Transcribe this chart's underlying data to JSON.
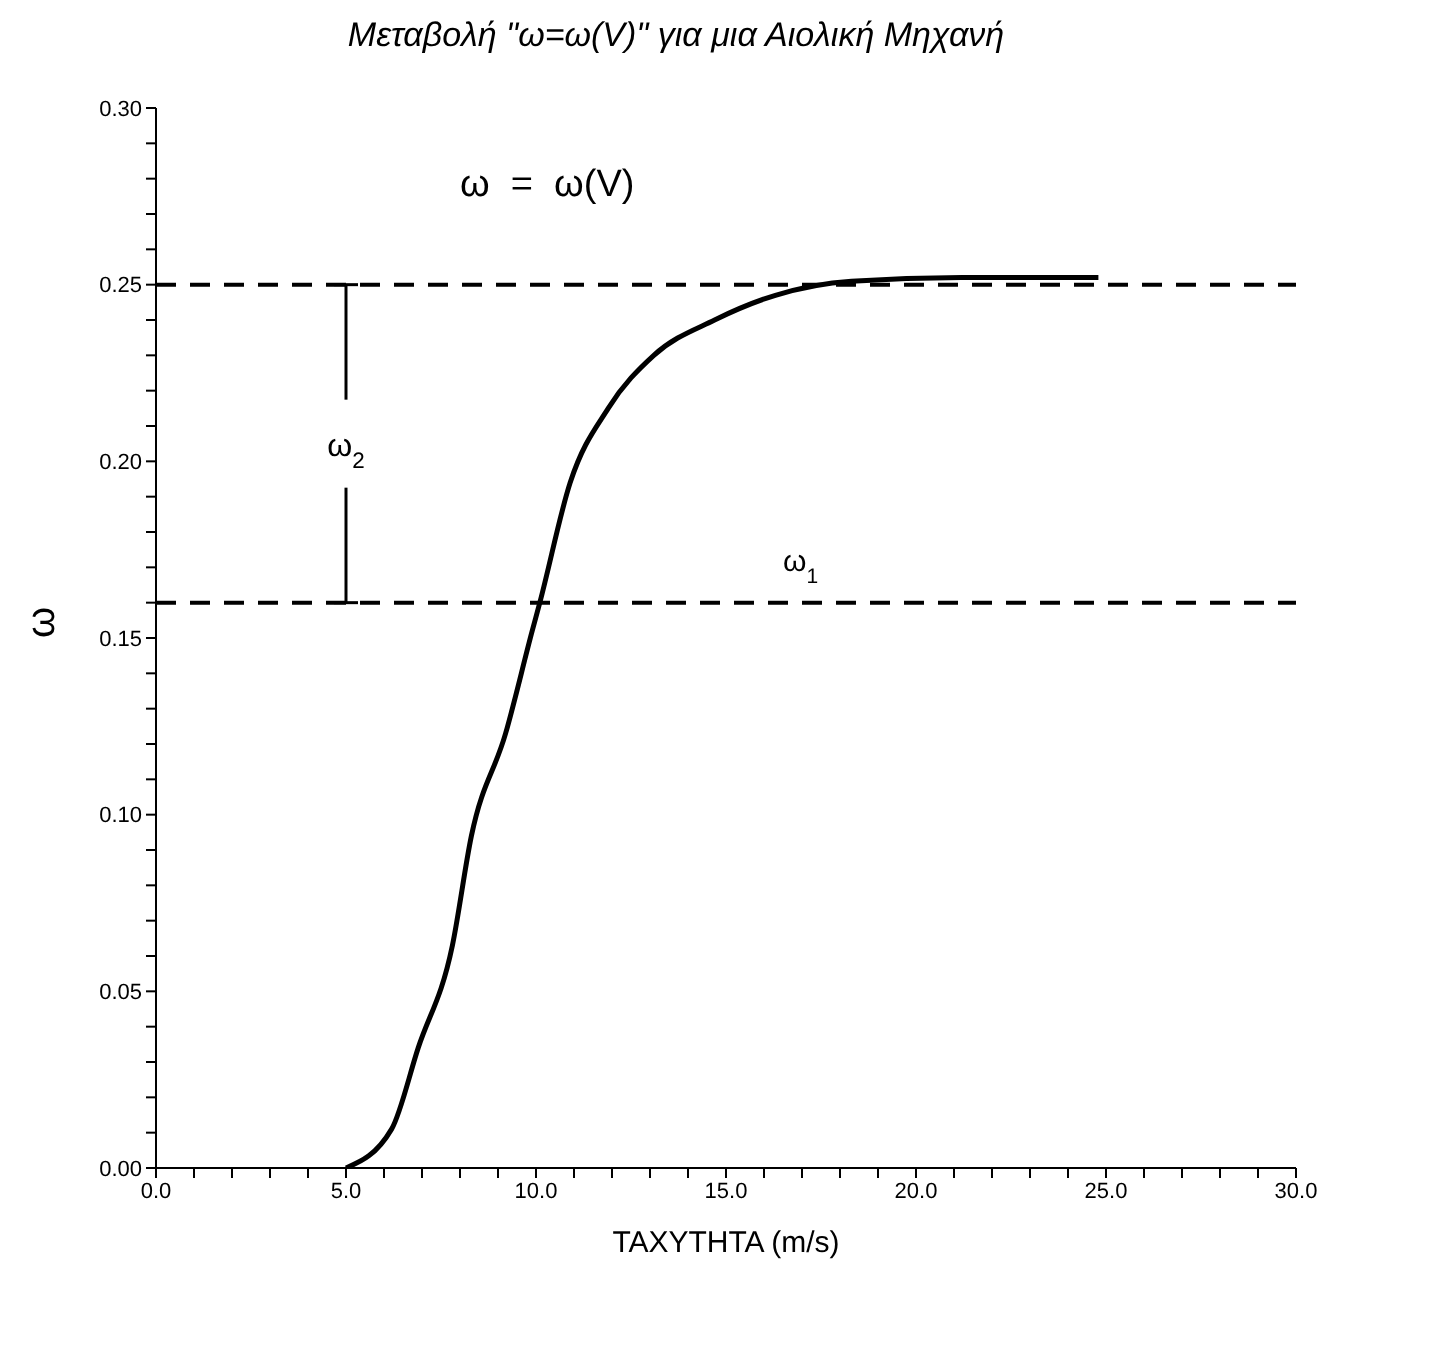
{
  "chart_data": {
    "type": "line",
    "title": "Μεταβολή \"ω=ω(V)\" για μια Αιολική Μηχανή",
    "xlabel": "ΤΑΧΥΤΗΤΑ  (m/s)",
    "ylabel": "ω",
    "x": [
      5.0,
      6.2,
      6.9,
      7.8,
      8.3,
      9.2,
      9.9,
      10.1,
      10.9,
      11.9,
      13.1,
      14.7,
      16.3,
      18.3,
      21.2,
      24.8
    ],
    "series": [
      {
        "color": "#000000",
        "values": [
          0.0,
          0.011,
          0.034,
          0.063,
          0.094,
          0.123,
          0.152,
          0.16,
          0.194,
          0.215,
          0.23,
          0.24,
          0.247,
          0.251,
          0.252,
          0.252
        ]
      }
    ],
    "xlim": [
      0,
      30
    ],
    "ylim": [
      0,
      0.3
    ],
    "xticks": [
      {
        "value": 0,
        "label": "0.0"
      },
      {
        "value": 1,
        "label": null
      },
      {
        "value": 2,
        "label": null
      },
      {
        "value": 3,
        "label": null
      },
      {
        "value": 4,
        "label": null
      },
      {
        "value": 5,
        "label": "5.0"
      },
      {
        "value": 6,
        "label": null
      },
      {
        "value": 7,
        "label": null
      },
      {
        "value": 8,
        "label": null
      },
      {
        "value": 9,
        "label": null
      },
      {
        "value": 10,
        "label": "10.0"
      },
      {
        "value": 11,
        "label": null
      },
      {
        "value": 12,
        "label": null
      },
      {
        "value": 13,
        "label": null
      },
      {
        "value": 14,
        "label": null
      },
      {
        "value": 15,
        "label": "15.0"
      },
      {
        "value": 16,
        "label": null
      },
      {
        "value": 17,
        "label": null
      },
      {
        "value": 18,
        "label": null
      },
      {
        "value": 19,
        "label": null
      },
      {
        "value": 20,
        "label": "20.0"
      },
      {
        "value": 21,
        "label": null
      },
      {
        "value": 22,
        "label": null
      },
      {
        "value": 23,
        "label": null
      },
      {
        "value": 24,
        "label": null
      },
      {
        "value": 25,
        "label": "25.0"
      },
      {
        "value": 26,
        "label": null
      },
      {
        "value": 27,
        "label": null
      },
      {
        "value": 28,
        "label": null
      },
      {
        "value": 29,
        "label": null
      },
      {
        "value": 30,
        "label": "30.0"
      }
    ],
    "yticks": [
      {
        "value": 0,
        "label": "0.00"
      },
      {
        "value": 0.01,
        "label": null
      },
      {
        "value": 0.02,
        "label": null
      },
      {
        "value": 0.03,
        "label": null
      },
      {
        "value": 0.04,
        "label": null
      },
      {
        "value": 0.05,
        "label": "0.05"
      },
      {
        "value": 0.06,
        "label": null
      },
      {
        "value": 0.07,
        "label": null
      },
      {
        "value": 0.08,
        "label": null
      },
      {
        "value": 0.09,
        "label": null
      },
      {
        "value": 0.1,
        "label": "0.10"
      },
      {
        "value": 0.11,
        "label": null
      },
      {
        "value": 0.12,
        "label": null
      },
      {
        "value": 0.13,
        "label": null
      },
      {
        "value": 0.14,
        "label": null
      },
      {
        "value": 0.15,
        "label": "0.15"
      },
      {
        "value": 0.16,
        "label": null
      },
      {
        "value": 0.17,
        "label": null
      },
      {
        "value": 0.18,
        "label": null
      },
      {
        "value": 0.19,
        "label": null
      },
      {
        "value": 0.2,
        "label": "0.20"
      },
      {
        "value": 0.21,
        "label": null
      },
      {
        "value": 0.22,
        "label": null
      },
      {
        "value": 0.23,
        "label": null
      },
      {
        "value": 0.24,
        "label": null
      },
      {
        "value": 0.25,
        "label": "0.25"
      },
      {
        "value": 0.26,
        "label": null
      },
      {
        "value": 0.27,
        "label": null
      },
      {
        "value": 0.28,
        "label": null
      },
      {
        "value": 0.29,
        "label": null
      },
      {
        "value": 0.3,
        "label": "0.30"
      }
    ],
    "ref_lines": [
      {
        "axis": "y",
        "value": 0.25,
        "label": null,
        "color": "#000000",
        "line_style": "dashed"
      },
      {
        "axis": "y",
        "value": 0.16,
        "label": "ω$_{1}$",
        "color": "#000000",
        "line_style": "dashed"
      }
    ],
    "annotations": [
      "ω  =  ω(V)",
      {
        "text": "ω$_{2}$",
        "x": 5,
        "y": 0.25
      }
    ],
    "grid": false,
    "legend": false,
    "marker": "none",
    "line_style": "solid"
  }
}
